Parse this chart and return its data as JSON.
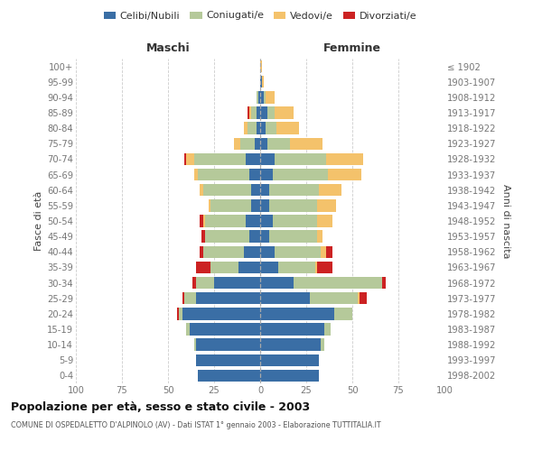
{
  "age_groups": [
    "0-4",
    "5-9",
    "10-14",
    "15-19",
    "20-24",
    "25-29",
    "30-34",
    "35-39",
    "40-44",
    "45-49",
    "50-54",
    "55-59",
    "60-64",
    "65-69",
    "70-74",
    "75-79",
    "80-84",
    "85-89",
    "90-94",
    "95-99",
    "100+"
  ],
  "birth_years": [
    "1998-2002",
    "1993-1997",
    "1988-1992",
    "1983-1987",
    "1978-1982",
    "1973-1977",
    "1968-1972",
    "1963-1967",
    "1958-1962",
    "1953-1957",
    "1948-1952",
    "1943-1947",
    "1938-1942",
    "1933-1937",
    "1928-1932",
    "1923-1927",
    "1918-1922",
    "1913-1917",
    "1908-1912",
    "1903-1907",
    "≤ 1902"
  ],
  "colors": {
    "celibi": "#3a6ea5",
    "coniugati": "#b5c99a",
    "vedovi": "#f4c26b",
    "divorziati": "#cc2222"
  },
  "maschi": {
    "celibi": [
      34,
      35,
      35,
      38,
      42,
      35,
      25,
      12,
      9,
      6,
      8,
      5,
      5,
      6,
      8,
      3,
      2,
      2,
      1,
      0,
      0
    ],
    "coniugati": [
      0,
      0,
      1,
      2,
      2,
      6,
      10,
      15,
      22,
      24,
      22,
      22,
      26,
      28,
      28,
      8,
      5,
      3,
      1,
      0,
      0
    ],
    "vedovi": [
      0,
      0,
      0,
      0,
      0,
      0,
      0,
      0,
      0,
      0,
      1,
      1,
      2,
      2,
      4,
      3,
      2,
      1,
      0,
      0,
      0
    ],
    "divorziati": [
      0,
      0,
      0,
      0,
      1,
      1,
      2,
      8,
      2,
      2,
      2,
      0,
      0,
      0,
      1,
      0,
      0,
      1,
      0,
      0,
      0
    ]
  },
  "femmine": {
    "celibi": [
      32,
      32,
      33,
      35,
      40,
      27,
      18,
      10,
      8,
      5,
      7,
      5,
      5,
      7,
      8,
      4,
      3,
      4,
      2,
      1,
      0
    ],
    "coniugati": [
      0,
      0,
      2,
      3,
      10,
      26,
      48,
      20,
      25,
      26,
      24,
      26,
      27,
      30,
      28,
      12,
      6,
      4,
      1,
      0,
      0
    ],
    "vedovi": [
      0,
      0,
      0,
      0,
      0,
      1,
      0,
      1,
      3,
      3,
      8,
      10,
      12,
      18,
      20,
      18,
      12,
      10,
      5,
      1,
      1
    ],
    "divorziati": [
      0,
      0,
      0,
      0,
      0,
      4,
      2,
      8,
      3,
      0,
      0,
      0,
      0,
      0,
      0,
      0,
      0,
      0,
      0,
      0,
      0
    ]
  },
  "xlim": 100,
  "title": "Popolazione per età, sesso e stato civile - 2003",
  "subtitle": "COMUNE DI OSPEDALETTO D'ALPINOLO (AV) - Dati ISTAT 1° gennaio 2003 - Elaborazione TUTTITALIA.IT",
  "ylabel_left": "Fasce di età",
  "ylabel_right": "Anni di nascita",
  "xlabel_left": "Maschi",
  "xlabel_right": "Femmine",
  "legend_labels": [
    "Celibi/Nubili",
    "Coniugati/e",
    "Vedovi/e",
    "Divorziati/e"
  ],
  "bg_color": "#ffffff",
  "grid_color": "#cccccc",
  "label_color": "#444444",
  "tick_color": "#777777"
}
